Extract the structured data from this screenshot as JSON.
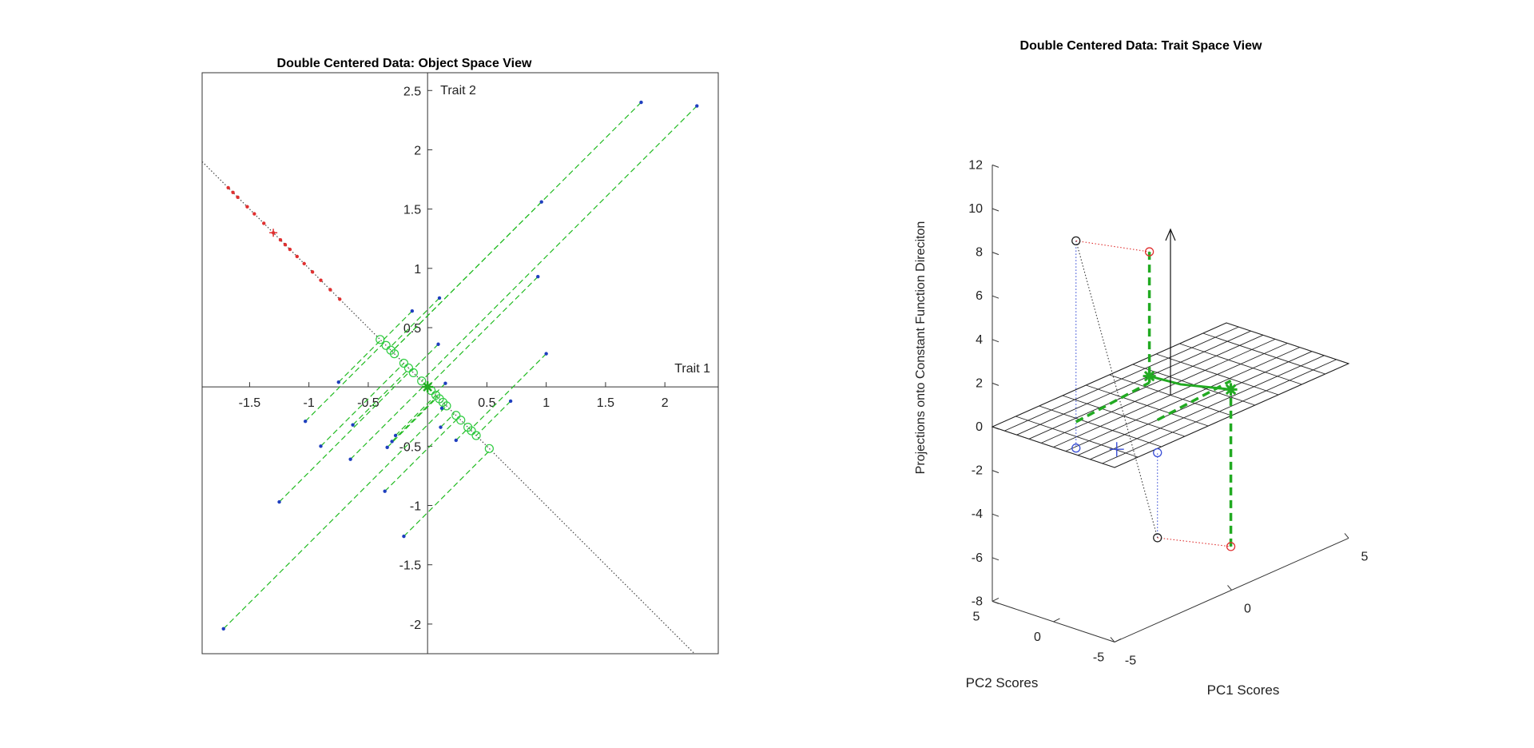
{
  "chart_data": [
    {
      "type": "scatter",
      "title": "Double Centered Data: Object Space View",
      "xlabel": "",
      "ylabel": "",
      "axis_labels": {
        "x": "Trait 1",
        "y": "Trait 2"
      },
      "xlim": [
        -1.9,
        2.45
      ],
      "ylim": [
        -2.25,
        2.65
      ],
      "xticks": [
        -1.5,
        -1,
        -0.5,
        0.5,
        1,
        1.5,
        2
      ],
      "xtick_labels": [
        "-1.5",
        "-1",
        "-0.5",
        "0.5",
        "1",
        "1.5",
        "2"
      ],
      "yticks": [
        -2,
        -1.5,
        -1,
        -0.5,
        0.5,
        1,
        1.5,
        2,
        2.5
      ],
      "ytick_labels": [
        "-2",
        "-1.5",
        "-1",
        "-0.5",
        "0.5",
        "1",
        "1.5",
        "2",
        "2.5"
      ],
      "grid": false,
      "axes_through_origin": true,
      "colors": {
        "points": "#1f3fbf",
        "projections": "#2ecc40",
        "projection_lines": "#22bb22",
        "loadings": "#e03030",
        "diagonal": "#444444"
      },
      "series": [
        {
          "marker": "dot",
          "color": "#1f3fbf",
          "points": [
            [
              1.8,
              2.4
            ],
            [
              2.27,
              2.37
            ],
            [
              0.96,
              1.56
            ],
            [
              0.93,
              0.93
            ],
            [
              0.1,
              0.75
            ],
            [
              -0.13,
              0.64
            ],
            [
              0.09,
              0.36
            ],
            [
              1.0,
              0.28
            ],
            [
              -0.75,
              0.04
            ],
            [
              0.15,
              0.03
            ],
            [
              0.7,
              -0.12
            ],
            [
              -1.03,
              -0.29
            ],
            [
              -0.63,
              -0.32
            ],
            [
              0.11,
              -0.34
            ],
            [
              0.24,
              -0.45
            ],
            [
              -0.3,
              -0.46
            ],
            [
              -0.9,
              -0.5
            ],
            [
              -0.34,
              -0.51
            ],
            [
              -0.65,
              -0.61
            ],
            [
              -1.25,
              -0.97
            ],
            [
              -0.36,
              -0.88
            ],
            [
              -0.2,
              -1.26
            ],
            [
              -1.72,
              -2.04
            ],
            [
              0.12,
              -0.18
            ],
            [
              -0.27,
              -0.41
            ]
          ]
        },
        {
          "marker": "circle",
          "color": "#2ecc40",
          "points": [
            [
              -0.4,
              0.4
            ],
            [
              -0.35,
              0.35
            ],
            [
              -0.31,
              0.31
            ],
            [
              -0.28,
              0.28
            ],
            [
              -0.2,
              0.2
            ],
            [
              -0.16,
              0.16
            ],
            [
              -0.12,
              0.12
            ],
            [
              -0.05,
              0.05
            ],
            [
              0.03,
              -0.03
            ],
            [
              0.07,
              -0.07
            ],
            [
              0.1,
              -0.1
            ],
            [
              0.13,
              -0.13
            ],
            [
              0.16,
              -0.16
            ],
            [
              0.24,
              -0.24
            ],
            [
              0.28,
              -0.28
            ],
            [
              0.34,
              -0.34
            ],
            [
              0.37,
              -0.37
            ],
            [
              0.41,
              -0.41
            ],
            [
              0.52,
              -0.52
            ]
          ]
        },
        {
          "marker": "dot",
          "color": "#e03030",
          "points": [
            [
              -1.68,
              1.68
            ],
            [
              -1.64,
              1.64
            ],
            [
              -1.6,
              1.6
            ],
            [
              -1.52,
              1.52
            ],
            [
              -1.46,
              1.46
            ],
            [
              -1.38,
              1.38
            ],
            [
              -1.3,
              1.3
            ],
            [
              -1.24,
              1.24
            ],
            [
              -1.2,
              1.2
            ],
            [
              -1.16,
              1.16
            ],
            [
              -1.1,
              1.1
            ],
            [
              -1.04,
              1.04
            ],
            [
              -0.97,
              0.97
            ],
            [
              -0.9,
              0.9
            ],
            [
              -0.82,
              0.82
            ],
            [
              -0.74,
              0.74
            ]
          ]
        }
      ],
      "mean_markers": {
        "red_plus": [
          -1.3,
          1.3
        ],
        "green_star": [
          0.0,
          0.0
        ]
      }
    },
    {
      "type": "scatter3d",
      "title": "Double Centered Data: Trait Space View",
      "xlabel": "PC1 Scores",
      "ylabel": "PC2 Scores",
      "zlabel": "Projections onto Constant Function Direciton",
      "xlim": [
        -5,
        5
      ],
      "ylim": [
        -5,
        5
      ],
      "zlim": [
        -8,
        12
      ],
      "xticks": [
        -5,
        0,
        5
      ],
      "xtick_labels": [
        "-5",
        "0",
        "5"
      ],
      "yticks": [
        -5,
        0,
        5
      ],
      "ytick_labels": [
        "-5",
        "0",
        "5"
      ],
      "zticks": [
        -8,
        -6,
        -4,
        -2,
        0,
        2,
        4,
        6,
        8,
        10,
        12
      ],
      "ztick_labels": [
        "-8",
        "-6",
        "-4",
        "-2",
        "0",
        "2",
        "4",
        "6",
        "8",
        "10",
        "12"
      ],
      "grid_plane": "z=0 mesh",
      "colors": {
        "black_points": "#222222",
        "red_points": "#e03030",
        "blue_points": "#3a4fd6",
        "green": "#22aa22",
        "mesh": "#222222"
      },
      "points": {
        "black_circles": [
          [
            -3.2,
            1.6,
            8.3
          ],
          [
            -1.6,
            -2.0,
            -5.4
          ]
        ],
        "red_circles": [
          [
            0.3,
            2.3,
            6.0
          ],
          [
            1.9,
            -1.3,
            -7.6
          ]
        ],
        "blue_circles": [
          [
            -3.2,
            1.6,
            -1.2
          ],
          [
            -1.6,
            -2.0,
            -1.5
          ]
        ],
        "blue_plus": [
          -2.4,
          -0.2,
          -1.3
        ],
        "green_stars": [
          [
            0.3,
            2.3,
            0.3
          ],
          [
            1.9,
            -1.3,
            -0.4
          ]
        ],
        "vertical_arrow_top": [
          0.0,
          0.0,
          7.6
        ]
      }
    }
  ]
}
